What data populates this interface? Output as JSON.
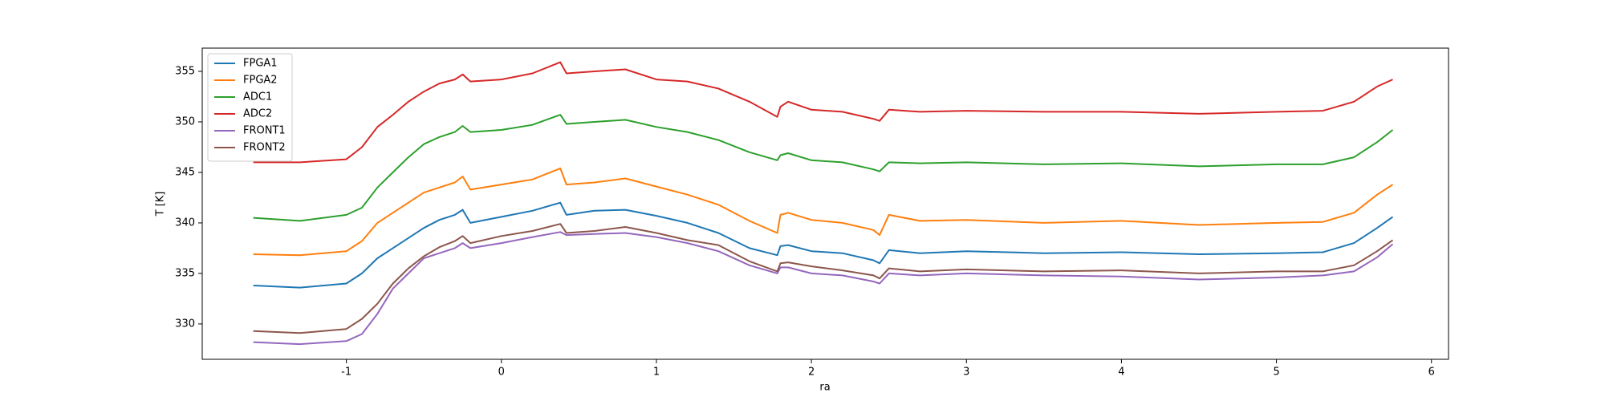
{
  "chart_data": {
    "type": "line",
    "xlabel": "ra",
    "ylabel": "T [K]",
    "xlim": [
      -1.93,
      6.11
    ],
    "xticks": [
      -1,
      0,
      1,
      2,
      3,
      4,
      5,
      6
    ],
    "ylim": [
      326.5,
      357.3
    ],
    "yticks": [
      330,
      335,
      340,
      345,
      350,
      355
    ],
    "legend": "upper left",
    "x": [
      -1.6,
      -1.3,
      -1.0,
      -0.9,
      -0.8,
      -0.7,
      -0.6,
      -0.5,
      -0.4,
      -0.3,
      -0.25,
      -0.2,
      0,
      0.2,
      0.38,
      0.42,
      0.6,
      0.8,
      1.0,
      1.2,
      1.4,
      1.6,
      1.78,
      1.8,
      1.85,
      2.0,
      2.2,
      2.4,
      2.44,
      2.5,
      2.7,
      3.0,
      3.5,
      4.0,
      4.5,
      5.0,
      5.3,
      5.5,
      5.65,
      5.75
    ],
    "series": [
      {
        "name": "FPGA1",
        "color": "#1f77b4",
        "values": [
          333.8,
          333.6,
          334,
          335,
          336.5,
          337.5,
          338.5,
          339.5,
          340.3,
          340.8,
          341.3,
          340,
          340.6,
          341.2,
          342,
          340.8,
          341.2,
          341.3,
          340.7,
          340,
          339,
          337.5,
          336.8,
          337.7,
          337.8,
          337.2,
          337,
          336.3,
          336,
          337.3,
          337,
          337.2,
          337,
          337.1,
          336.9,
          337,
          337.1,
          338,
          339.5,
          340.6
        ]
      },
      {
        "name": "FPGA2",
        "color": "#ff7f0e",
        "values": [
          336.9,
          336.8,
          337.2,
          338.2,
          340,
          341,
          342,
          343,
          343.5,
          344,
          344.6,
          343.3,
          343.8,
          344.3,
          345.4,
          343.8,
          344,
          344.4,
          343.6,
          342.8,
          341.8,
          340.2,
          339,
          340.8,
          341,
          340.3,
          340,
          339.3,
          338.8,
          340.8,
          340.2,
          340.3,
          340,
          340.2,
          339.8,
          340,
          340.1,
          341,
          342.8,
          343.8
        ]
      },
      {
        "name": "ADC1",
        "color": "#2ca02c",
        "values": [
          340.5,
          340.2,
          340.8,
          341.5,
          343.5,
          345,
          346.5,
          347.8,
          348.5,
          349,
          349.6,
          349,
          349.2,
          349.7,
          350.7,
          349.8,
          350,
          350.2,
          349.5,
          349,
          348.2,
          347,
          346.2,
          346.7,
          346.9,
          346.2,
          346,
          345.3,
          345.1,
          346,
          345.9,
          346,
          345.8,
          345.9,
          345.6,
          345.8,
          345.8,
          346.5,
          348,
          349.2
        ]
      },
      {
        "name": "ADC2",
        "color": "#d62728",
        "values": [
          346,
          346,
          346.3,
          347.5,
          349.5,
          350.7,
          352,
          353,
          353.8,
          354.2,
          354.7,
          354,
          354.2,
          354.8,
          355.9,
          354.8,
          355,
          355.2,
          354.2,
          354,
          353.3,
          352,
          350.5,
          351.5,
          352,
          351.2,
          351,
          350.3,
          350.1,
          351.2,
          351,
          351.1,
          351,
          351,
          350.8,
          351,
          351.1,
          352,
          353.5,
          354.2
        ]
      },
      {
        "name": "FRONT1",
        "color": "#9467bd",
        "values": [
          328.2,
          328,
          328.3,
          329,
          331,
          333.5,
          335,
          336.5,
          337,
          337.5,
          338,
          337.5,
          338,
          338.6,
          339.1,
          338.8,
          338.9,
          339,
          338.6,
          338,
          337.2,
          335.8,
          335,
          335.6,
          335.6,
          335,
          334.8,
          334.2,
          334,
          335,
          334.8,
          335,
          334.8,
          334.7,
          334.4,
          334.6,
          334.8,
          335.2,
          336.6,
          337.9
        ]
      },
      {
        "name": "FRONT2",
        "color": "#8c564b",
        "values": [
          329.3,
          329.1,
          329.5,
          330.5,
          332,
          334,
          335.5,
          336.7,
          337.6,
          338.2,
          338.7,
          338,
          338.7,
          339.2,
          339.9,
          339,
          339.2,
          339.6,
          339,
          338.3,
          337.8,
          336.2,
          335.2,
          336,
          336.1,
          335.7,
          335.3,
          334.8,
          334.5,
          335.5,
          335.2,
          335.4,
          335.2,
          335.3,
          335,
          335.2,
          335.2,
          335.8,
          337.2,
          338.3
        ]
      }
    ]
  }
}
